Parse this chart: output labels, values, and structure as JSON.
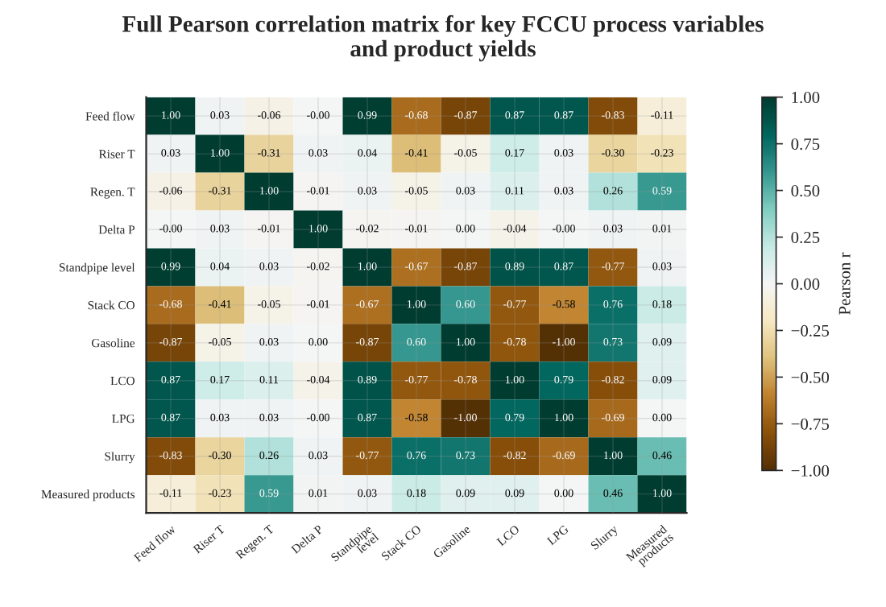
{
  "chart_data": {
    "type": "heatmap",
    "title": "Full Pearson correlation matrix for key FCCU process variables\nand product yields",
    "categories": [
      "Feed flow",
      "Riser T",
      "Regen. T",
      "Delta P",
      "Standpipe\nlevel",
      "Stack CO",
      "Gasoline",
      "LCO",
      "LPG",
      "Slurry",
      "Measured\nproducts"
    ],
    "y_categories": [
      "Feed flow",
      "Riser T",
      "Regen. T",
      "Delta P",
      "Standpipe level",
      "Stack CO",
      "Gasoline",
      "LCO",
      "LPG",
      "Slurry",
      "Measured products"
    ],
    "cells": [
      [
        1.0,
        0.03,
        -0.06,
        0.0,
        0.99,
        -0.68,
        -0.87,
        0.87,
        0.87,
        -0.83,
        -0.11
      ],
      [
        0.03,
        1.0,
        -0.31,
        0.03,
        0.04,
        -0.41,
        -0.05,
        0.17,
        0.03,
        -0.3,
        -0.23
      ],
      [
        -0.06,
        -0.31,
        1.0,
        -0.01,
        0.03,
        -0.05,
        0.03,
        0.11,
        0.03,
        0.26,
        0.59
      ],
      [
        0.0,
        0.03,
        -0.01,
        1.0,
        -0.02,
        -0.01,
        0.0,
        -0.04,
        0.0,
        0.03,
        0.01
      ],
      [
        0.99,
        0.04,
        0.03,
        -0.02,
        1.0,
        -0.67,
        -0.87,
        0.89,
        0.87,
        -0.77,
        0.03
      ],
      [
        -0.68,
        -0.41,
        -0.05,
        -0.01,
        -0.67,
        1.0,
        0.6,
        -0.77,
        -0.58,
        0.76,
        0.18
      ],
      [
        -0.87,
        -0.05,
        0.03,
        0.0,
        -0.87,
        0.6,
        1.0,
        -0.78,
        -1.0,
        0.73,
        0.09
      ],
      [
        0.87,
        0.17,
        0.11,
        -0.04,
        0.89,
        -0.77,
        -0.78,
        1.0,
        0.79,
        -0.82,
        0.09
      ],
      [
        0.87,
        0.03,
        0.03,
        0.0,
        0.87,
        -0.58,
        -1.0,
        0.79,
        1.0,
        -0.69,
        0.0
      ],
      [
        -0.83,
        -0.3,
        0.26,
        0.03,
        -0.77,
        0.76,
        0.73,
        -0.82,
        -0.69,
        1.0,
        0.46
      ],
      [
        -0.11,
        -0.23,
        0.59,
        0.01,
        0.03,
        0.18,
        0.09,
        0.09,
        0.0,
        0.46,
        1.0
      ]
    ],
    "cell_labels": [
      [
        "1.00",
        "0.03",
        "-0.06",
        "-0.00",
        "0.99",
        "-0.68",
        "-0.87",
        "0.87",
        "0.87",
        "-0.83",
        "-0.11"
      ],
      [
        "0.03",
        "1.00",
        "-0.31",
        "0.03",
        "0.04",
        "-0.41",
        "-0.05",
        "0.17",
        "0.03",
        "-0.30",
        "-0.23"
      ],
      [
        "-0.06",
        "-0.31",
        "1.00",
        "-0.01",
        "0.03",
        "-0.05",
        "0.03",
        "0.11",
        "0.03",
        "0.26",
        "0.59"
      ],
      [
        "-0.00",
        "0.03",
        "-0.01",
        "1.00",
        "-0.02",
        "-0.01",
        "0.00",
        "-0.04",
        "-0.00",
        "0.03",
        "0.01"
      ],
      [
        "0.99",
        "0.04",
        "0.03",
        "-0.02",
        "1.00",
        "-0.67",
        "-0.87",
        "0.89",
        "0.87",
        "-0.77",
        "0.03"
      ],
      [
        "-0.68",
        "-0.41",
        "-0.05",
        "-0.01",
        "-0.67",
        "1.00",
        "0.60",
        "-0.77",
        "-0.58",
        "0.76",
        "0.18"
      ],
      [
        "-0.87",
        "-0.05",
        "0.03",
        "0.00",
        "-0.87",
        "0.60",
        "1.00",
        "-0.78",
        "-1.00",
        "0.73",
        "0.09"
      ],
      [
        "0.87",
        "0.17",
        "0.11",
        "-0.04",
        "0.89",
        "-0.77",
        "-0.78",
        "1.00",
        "0.79",
        "-0.82",
        "0.09"
      ],
      [
        "0.87",
        "0.03",
        "0.03",
        "-0.00",
        "0.87",
        "-0.58",
        "-1.00",
        "0.79",
        "1.00",
        "-0.69",
        "0.00"
      ],
      [
        "-0.83",
        "-0.30",
        "0.26",
        "0.03",
        "-0.77",
        "0.76",
        "0.73",
        "-0.82",
        "-0.69",
        "1.00",
        "0.46"
      ],
      [
        "-0.11",
        "-0.23",
        "0.59",
        "0.01",
        "0.03",
        "0.18",
        "0.09",
        "0.09",
        "0.00",
        "0.46",
        "1.00"
      ]
    ],
    "clim": [
      -1.0,
      1.0
    ],
    "cticks": [
      {
        "value": -1.0,
        "label": "−1.00"
      },
      {
        "value": -0.75,
        "label": "−0.75"
      },
      {
        "value": -0.5,
        "label": "−0.50"
      },
      {
        "value": -0.25,
        "label": "−0.25"
      },
      {
        "value": 0.0,
        "label": "0.00"
      },
      {
        "value": 0.25,
        "label": "0.25"
      },
      {
        "value": 0.5,
        "label": "0.50"
      },
      {
        "value": 0.75,
        "label": "0.75"
      },
      {
        "value": 1.0,
        "label": "1.00"
      }
    ],
    "clabel": "Pearson r",
    "grid": true
  }
}
